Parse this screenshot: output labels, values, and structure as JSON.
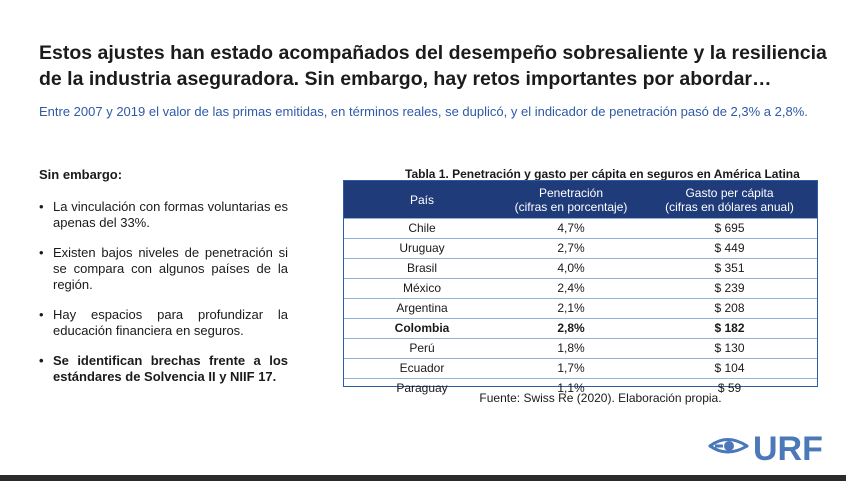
{
  "title_line1": "Estos ajustes han estado acompañados del desempeño sobresaliente y la resiliencia",
  "title_line2": "de la industria aseguradora. Sin embargo, hay retos importantes por abordar…",
  "subtitle": "Entre 2007 y 2019 el valor de las primas emitidas, en términos reales, se duplicó, y el indicador de penetración pasó de 2,3% a 2,8%.",
  "left": {
    "heading": "Sin embargo:",
    "bullet_symbol": "•",
    "bullets": [
      "La vinculación con formas voluntarias es apenas del 33%.",
      "Existen bajos niveles de penetración si se compara con algunos países de la región.",
      "Hay espacios para profundizar la educación financiera en seguros.",
      "Se identifican brechas frente a los estándares de Solvencia II y NIIF 17."
    ]
  },
  "table": {
    "caption": "Tabla 1. Penetración y gasto per cápita en seguros en América Latina",
    "headers": {
      "col1": "País",
      "col2_line1": "Penetración",
      "col2_line2": "(cifras en porcentaje)",
      "col3_line1": "Gasto per cápita",
      "col3_line2": "(cifras en dólares anual)"
    },
    "rows": [
      {
        "country": "Chile",
        "penetration": "4,7%",
        "spend": "$ 695"
      },
      {
        "country": "Uruguay",
        "penetration": "2,7%",
        "spend": "$ 449"
      },
      {
        "country": "Brasil",
        "penetration": "4,0%",
        "spend": "$ 351"
      },
      {
        "country": "México",
        "penetration": "2,4%",
        "spend": "$ 239"
      },
      {
        "country": "Argentina",
        "penetration": "2,1%",
        "spend": "$ 208"
      },
      {
        "country": "Colombia",
        "penetration": "2,8%",
        "spend": "$ 182"
      },
      {
        "country": "Perú",
        "penetration": "1,8%",
        "spend": "$ 130"
      },
      {
        "country": "Ecuador",
        "penetration": "1,7%",
        "spend": "$ 104"
      },
      {
        "country": "Paraguay",
        "penetration": "1,1%",
        "spend": "$ 59"
      }
    ],
    "source": "Fuente: Swiss Re (2020). Elaboración propia."
  },
  "logo": {
    "text": "URF",
    "color": "#4a78b8",
    "icon": "eye-logo-icon"
  },
  "colors": {
    "header_bg": "#1f3b7a",
    "subtitle": "#2e5aa7",
    "border": "#2a5ea0"
  }
}
